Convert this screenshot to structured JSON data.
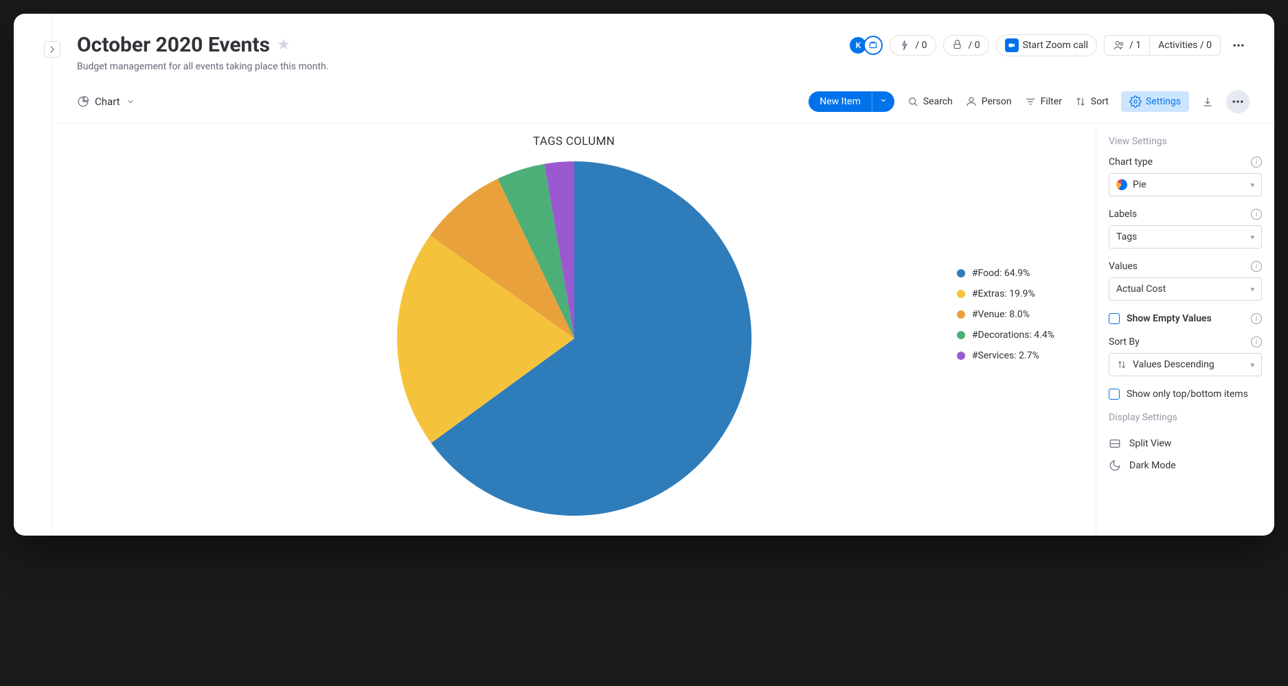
{
  "page": {
    "title": "October 2020 Events",
    "subtitle": "Budget management for all events taking place this month."
  },
  "header": {
    "avatar_initial": "K",
    "automation_count": "/ 0",
    "integration_count": "/ 0",
    "zoom_label": "Start Zoom call",
    "members_count": "/ 1",
    "activities_label": "Activities / 0"
  },
  "toolbar": {
    "view_label": "Chart",
    "new_item_label": "New Item",
    "search_label": "Search",
    "person_label": "Person",
    "filter_label": "Filter",
    "sort_label": "Sort",
    "settings_label": "Settings"
  },
  "chart": {
    "type": "pie",
    "title": "TAGS COLUMN",
    "radius": 258,
    "background_color": "#ffffff",
    "slices": [
      {
        "label": "#Food",
        "percent": 64.9,
        "color": "#2f7cba"
      },
      {
        "label": "#Extras",
        "percent": 19.9,
        "color": "#f5c33b"
      },
      {
        "label": "#Venue",
        "percent": 8.0,
        "color": "#e9a13b"
      },
      {
        "label": "#Decorations",
        "percent": 4.4,
        "color": "#4caf78"
      },
      {
        "label": "#Services",
        "percent": 2.7,
        "color": "#9b59d0"
      }
    ],
    "legend_format": "{label}: {percent}%",
    "legend_fontsize": 14,
    "legend_text_color": "#323338"
  },
  "settings": {
    "panel_title": "View Settings",
    "chart_type_label": "Chart type",
    "chart_type_value": "Pie",
    "labels_label": "Labels",
    "labels_value": "Tags",
    "values_label": "Values",
    "values_value": "Actual Cost",
    "show_empty_label": "Show Empty Values",
    "sort_by_label": "Sort By",
    "sort_by_value": "Values Descending",
    "show_top_bottom_label": "Show only top/bottom items",
    "display_section_title": "Display Settings",
    "split_view_label": "Split View",
    "dark_mode_label": "Dark Mode"
  }
}
